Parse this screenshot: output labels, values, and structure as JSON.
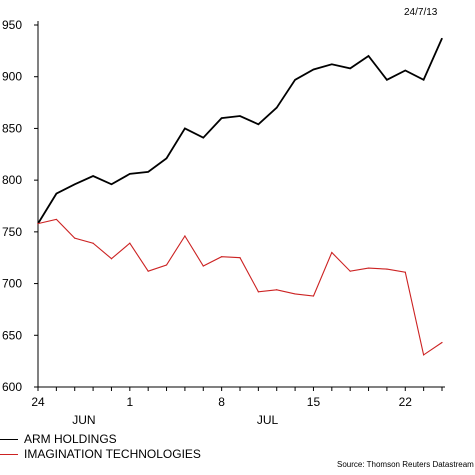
{
  "chart_data": {
    "type": "line",
    "date_label": "24/7/13",
    "source": "Source: Thomson Reuters Datastream",
    "x_tick_labels": [
      "24",
      "1",
      "8",
      "15",
      "22"
    ],
    "month_labels": [
      "JUN",
      "JUL"
    ],
    "ylim": [
      600,
      950
    ],
    "yticks": [
      600,
      650,
      700,
      750,
      800,
      850,
      900,
      950
    ],
    "grid": false,
    "legend_position": "bottom-left",
    "x": [
      "2013-06-24",
      "2013-06-25",
      "2013-06-26",
      "2013-06-27",
      "2013-06-28",
      "2013-07-01",
      "2013-07-02",
      "2013-07-03",
      "2013-07-04",
      "2013-07-05",
      "2013-07-08",
      "2013-07-09",
      "2013-07-10",
      "2013-07-11",
      "2013-07-12",
      "2013-07-15",
      "2013-07-16",
      "2013-07-17",
      "2013-07-18",
      "2013-07-19",
      "2013-07-22",
      "2013-07-23",
      "2013-07-24"
    ],
    "series": [
      {
        "name": "ARM HOLDINGS",
        "color": "#000000",
        "values": [
          758,
          787,
          796,
          804,
          796,
          806,
          808,
          821,
          850,
          841,
          860,
          862,
          854,
          870,
          897,
          907,
          912,
          908,
          920,
          897,
          906,
          897,
          937
        ]
      },
      {
        "name": "IMAGINATION TECHNOLOGIES",
        "color": "#cc2222",
        "values": [
          758,
          762,
          744,
          739,
          724,
          739,
          712,
          718,
          746,
          717,
          726,
          725,
          692,
          694,
          690,
          688,
          730,
          712,
          715,
          714,
          711,
          631,
          643
        ]
      }
    ]
  }
}
